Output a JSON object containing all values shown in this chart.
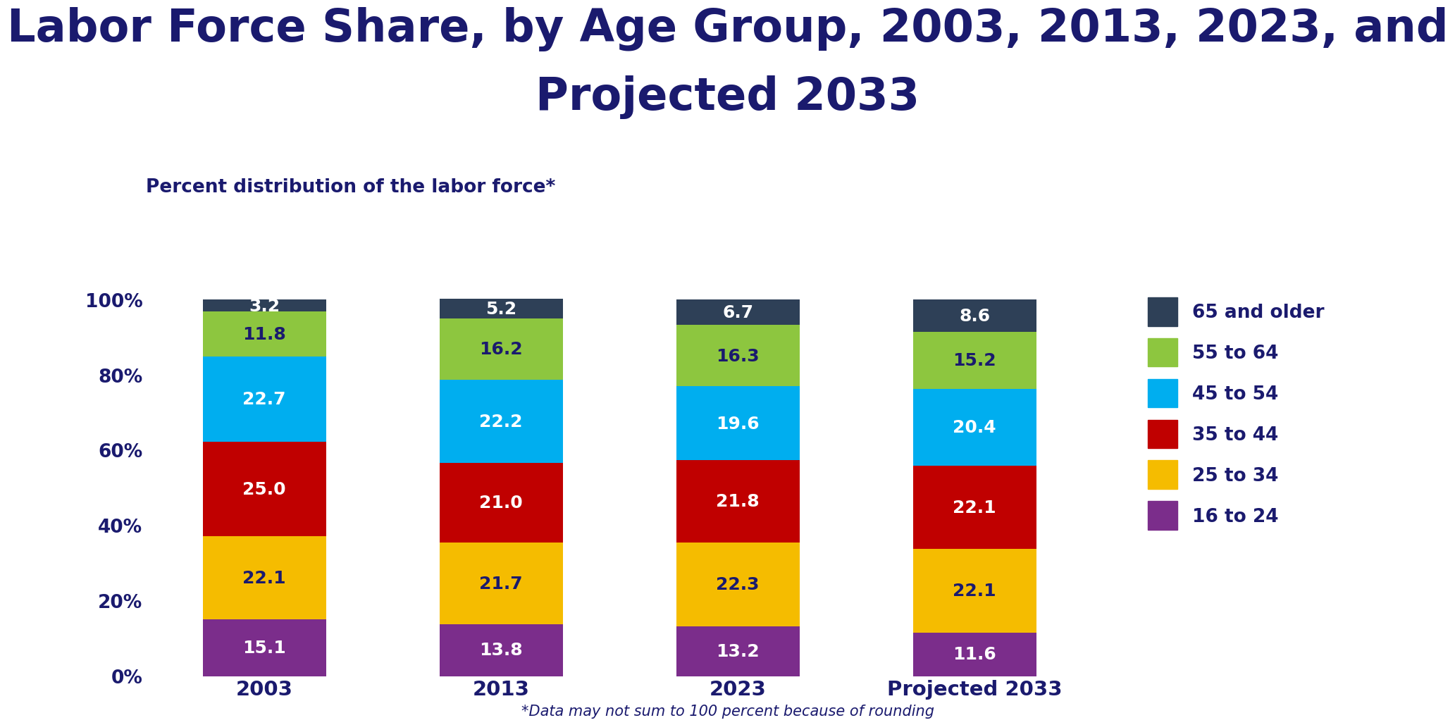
{
  "title_line1": "Labor Force Share, by Age Group, 2003, 2013, 2023, and",
  "title_line2": "Projected 2033",
  "subtitle": "Percent distribution of the labor force*",
  "footnote": "*Data may not sum to 100 percent because of rounding",
  "categories": [
    "2003",
    "2013",
    "2023",
    "Projected 2033"
  ],
  "age_groups": [
    "16 to 24",
    "25 to 34",
    "35 to 44",
    "45 to 54",
    "55 to 64",
    "65 and older"
  ],
  "colors": [
    "#7B2D8B",
    "#F5BC00",
    "#C00000",
    "#00AEEF",
    "#8DC63F",
    "#2E4057"
  ],
  "data": {
    "16 to 24": [
      15.1,
      13.8,
      13.2,
      11.6
    ],
    "25 to 34": [
      22.1,
      21.7,
      22.3,
      22.1
    ],
    "35 to 44": [
      25.0,
      21.0,
      21.8,
      22.1
    ],
    "45 to 54": [
      22.7,
      22.2,
      19.6,
      20.4
    ],
    "55 to 64": [
      11.8,
      16.2,
      16.3,
      15.2
    ],
    "65 and older": [
      3.2,
      5.2,
      6.7,
      8.6
    ]
  },
  "title_color": "#1a1a6e",
  "subtitle_color": "#1a1a6e",
  "label_color_white": "#ffffff",
  "label_color_dark": "#1a1a6e",
  "tick_label_color": "#1a1a6e",
  "legend_text_color": "#1a1a6e",
  "background_color": "#ffffff",
  "title_fontsize": 46,
  "subtitle_fontsize": 19,
  "bar_label_fontsize": 18,
  "axis_tick_fontsize": 19,
  "legend_fontsize": 19,
  "xtick_fontsize": 21,
  "footnote_fontsize": 15,
  "bar_width": 0.52,
  "ylim": [
    0,
    105
  ]
}
